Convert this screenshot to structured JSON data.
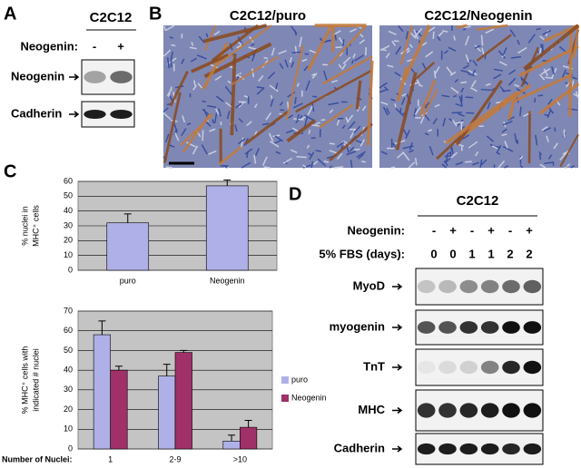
{
  "panels": {
    "A": {
      "label": "A",
      "title": "C2C12",
      "row_label": "Neogenin:",
      "lanes": [
        "-",
        "+"
      ],
      "bands": [
        "Neogenin",
        "Cadherin"
      ]
    },
    "B": {
      "label": "B",
      "images": [
        "C2C12/puro",
        "C2C12/Neogenin"
      ]
    },
    "C": {
      "label": "C"
    },
    "D": {
      "label": "D",
      "title": "C2C12",
      "rows": [
        {
          "label": "Neogenin:",
          "lanes": [
            "-",
            "+",
            "-",
            "+",
            "-",
            "+"
          ]
        },
        {
          "label": "5% FBS (days):",
          "lanes": [
            "0",
            "0",
            "1",
            "1",
            "2",
            "2"
          ]
        }
      ],
      "bands": [
        "MyoD",
        "myogenin",
        "TnT",
        "MHC",
        "Cadherin"
      ]
    }
  },
  "chart_data": [
    {
      "type": "bar",
      "ylabel": [
        "% nuclei in",
        "MHC⁺ cells"
      ],
      "categories": [
        "puro",
        "Neogenin"
      ],
      "values": [
        32,
        57
      ],
      "errors": [
        6,
        4
      ],
      "color": "#b0b0e8",
      "background": "#c4c4c4",
      "ylim": [
        0,
        60
      ],
      "yticks": [
        0,
        10,
        20,
        30,
        40,
        50,
        60
      ],
      "grid": true
    },
    {
      "type": "bar",
      "ylabel": [
        "% MHC⁺ cells with",
        "indicated # nuclei"
      ],
      "xlabel": "Number of Nuclei:",
      "categories": [
        "1",
        "2-9",
        ">10"
      ],
      "series": [
        {
          "name": "puro",
          "color": "#b0b0e8",
          "values": [
            58,
            37,
            4
          ],
          "errors": [
            7,
            6,
            3
          ]
        },
        {
          "name": "Neogenin",
          "color": "#a03068",
          "values": [
            40,
            49,
            11
          ],
          "errors": [
            2,
            1,
            3.5
          ]
        }
      ],
      "background": "#c4c4c4",
      "ylim": [
        0,
        70
      ],
      "yticks": [
        0,
        10,
        20,
        30,
        40,
        50,
        60,
        70
      ],
      "grid": true,
      "legend": "right"
    }
  ]
}
